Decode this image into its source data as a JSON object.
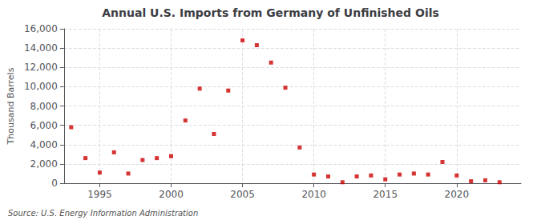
{
  "chart_data": {
    "type": "scatter",
    "title": "Annual U.S. Imports from Germany of Unfinished Oils",
    "ylabel": "Thousand Barrels",
    "annotations": [
      "Source: U.S. Energy Information Administration"
    ],
    "x": [
      1993,
      1994,
      1995,
      1996,
      1997,
      1998,
      1999,
      2000,
      2001,
      2002,
      2003,
      2004,
      2005,
      2006,
      2007,
      2008,
      2009,
      2010,
      2011,
      2012,
      2013,
      2014,
      2015,
      2016,
      2017,
      2018,
      2019,
      2020,
      2021,
      2022,
      2023
    ],
    "values": [
      5800,
      2600,
      1100,
      3200,
      1000,
      2400,
      2600,
      2800,
      6500,
      9800,
      5100,
      9600,
      14800,
      14300,
      12500,
      9900,
      3700,
      900,
      700,
      100,
      700,
      800,
      400,
      900,
      1000,
      900,
      2200,
      800,
      200,
      300,
      100
    ],
    "color": "#cc0000",
    "marker": "square",
    "xlim": [
      1992.5,
      2024.5
    ],
    "xticks": [
      1995,
      2000,
      2005,
      2010,
      2015,
      2020
    ],
    "ylim": [
      0,
      16000
    ],
    "yticks": [
      0,
      {
        "value": 2000,
        "label": "2,000"
      },
      {
        "value": 4000,
        "label": "4,000"
      },
      {
        "value": 6000,
        "label": "6,000"
      },
      {
        "value": 8000,
        "label": "8,000"
      },
      {
        "value": 10000,
        "label": "10,000"
      },
      {
        "value": 12000,
        "label": "12,000"
      },
      {
        "value": 14000,
        "label": "14,000"
      },
      {
        "value": 16000,
        "label": "16,000"
      }
    ],
    "grid": true
  }
}
